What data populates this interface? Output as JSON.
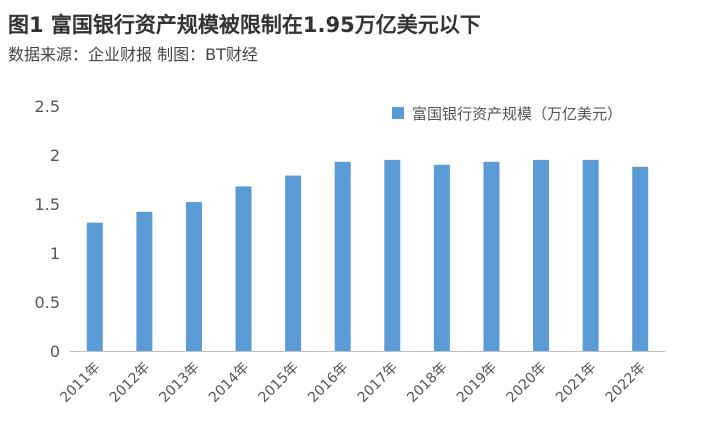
{
  "header": {
    "title": "图1 富国银行资产规模被限制在1.95万亿美元以下",
    "source": "数据来源：企业财报 制图：BT财经"
  },
  "chart_data": {
    "type": "bar",
    "categories": [
      "2011年",
      "2012年",
      "2013年",
      "2014年",
      "2015年",
      "2016年",
      "2017年",
      "2018年",
      "2019年",
      "2020年",
      "2021年",
      "2022年"
    ],
    "series": [
      {
        "name": "富国银行资产规模（万亿美元）",
        "values": [
          1.31,
          1.42,
          1.52,
          1.68,
          1.79,
          1.93,
          1.95,
          1.9,
          1.93,
          1.95,
          1.95,
          1.88
        ]
      }
    ],
    "y_ticks": [
      "0",
      "0.5",
      "1",
      "1.5",
      "2",
      "2.5"
    ],
    "ylim": [
      0,
      2.5
    ],
    "grid": false,
    "legend_position": "top-right",
    "bar_color": "#5B9BD5"
  }
}
